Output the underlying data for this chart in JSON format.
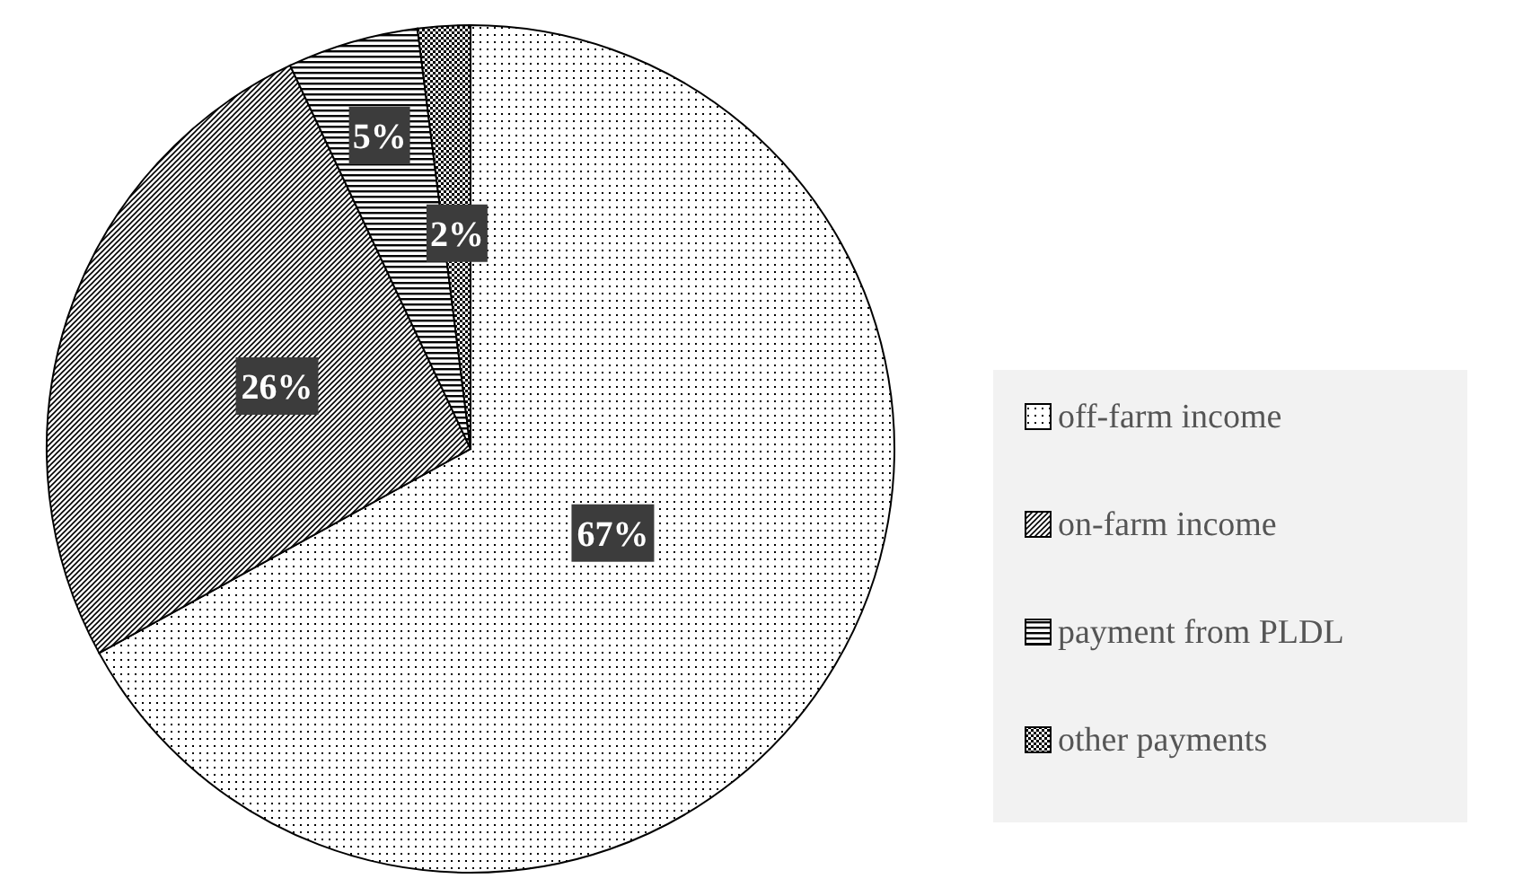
{
  "chart_data": {
    "type": "pie",
    "categories": [
      "off-farm income",
      "on-farm income",
      "payment from PLDL",
      "other payments"
    ],
    "values": [
      67,
      26,
      5,
      2
    ],
    "colors": [
      "#000000",
      "#000000",
      "#000000",
      "#000000"
    ],
    "value_labels": [
      "67%",
      "26%",
      "5%",
      "2%"
    ],
    "legend": "right"
  }
}
